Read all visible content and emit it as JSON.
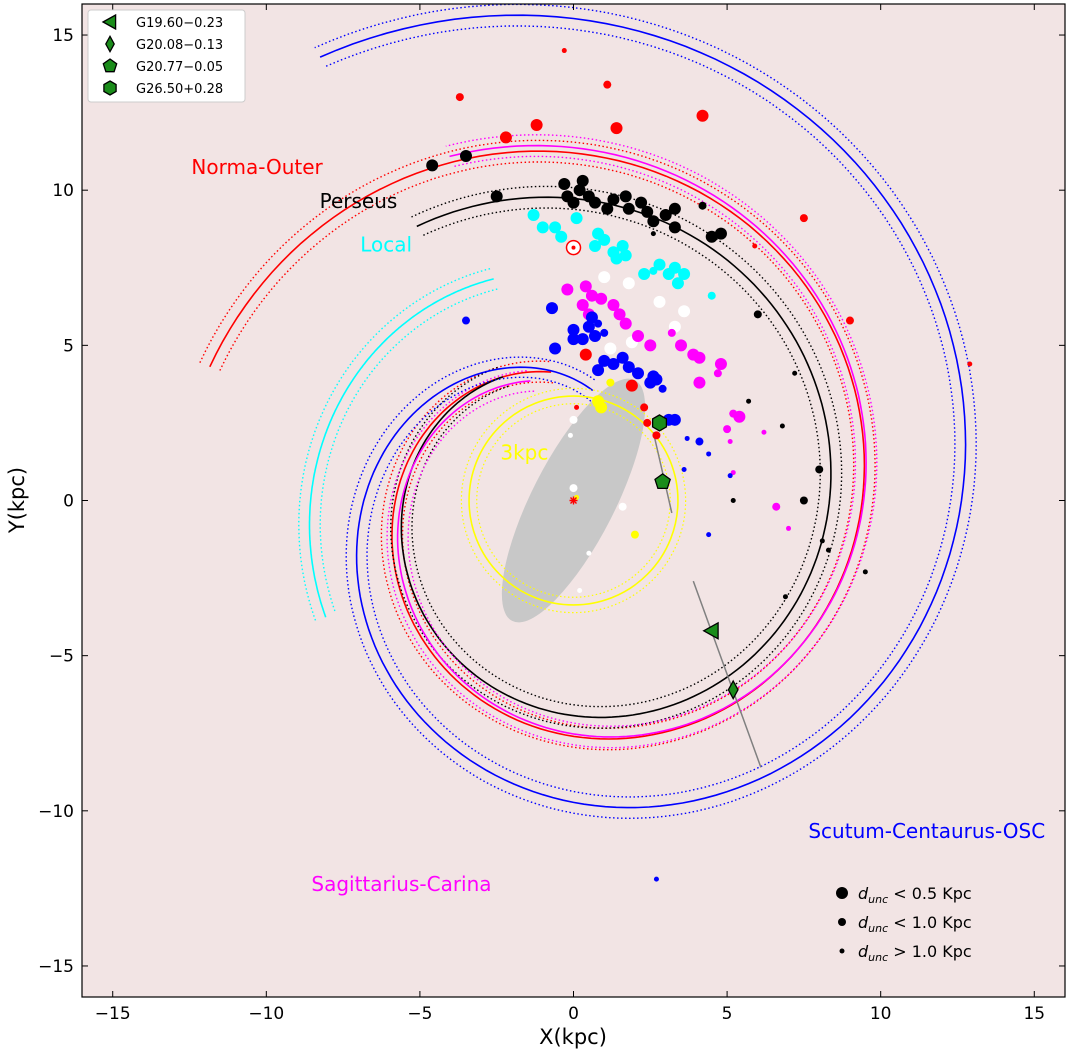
{
  "chart_data": {
    "type": "scatter",
    "xlabel": "X(kpc)",
    "ylabel": "Y(kpc)",
    "xlim": [
      -16,
      16
    ],
    "ylim": [
      -16,
      16
    ],
    "xticks": [
      -15,
      -10,
      -5,
      0,
      5,
      10,
      15
    ],
    "yticks": [
      -15,
      -10,
      -5,
      0,
      5,
      10,
      15
    ],
    "tick_labels": [
      "−15",
      "−10",
      "−5",
      "0",
      "5",
      "10",
      "15"
    ],
    "background": "#f2e4e4",
    "grid": false,
    "arms": [
      {
        "name": "Norma-Outer",
        "color": "#ff0000",
        "label_at": [
          -10.3,
          10.7
        ],
        "inner_radius": 4.2,
        "outer_radius": 12.6,
        "angle_start": 100,
        "angle_end": 520
      },
      {
        "name": "Perseus",
        "color": "#000000",
        "label_at": [
          -7.0,
          9.6
        ],
        "inner_radius": 4.6,
        "outer_radius": 10.2,
        "angle_start": 120,
        "angle_end": 480
      },
      {
        "name": "Local",
        "color": "#00ffff",
        "label_at": [
          -6.1,
          8.2
        ],
        "inner_radius": 7.6,
        "outer_radius": 8.9,
        "angle_start": 110,
        "angle_end": 205
      },
      {
        "name": "Sagittarius-Carina",
        "color": "#ff00ff",
        "label_at": [
          -5.6,
          -12.4
        ],
        "inner_radius": 4.1,
        "outer_radius": 11.8,
        "angle_start": 110,
        "angle_end": 470
      },
      {
        "name": "Scutum-Centaurus-OSC",
        "color": "#0000ff",
        "label_at": [
          11.5,
          -10.7
        ],
        "inner_radius": 3.6,
        "outer_radius": 16.5,
        "angle_start": 80,
        "angle_end": 480
      },
      {
        "name": "3kpc",
        "color": "#ffff00",
        "label_at": [
          -1.6,
          1.5
        ],
        "inner_radius": 3.4,
        "outer_radius": 3.4,
        "angle_start": 0,
        "angle_end": 360
      }
    ],
    "bar": {
      "center": [
        0,
        0
      ],
      "half_length": 4.4,
      "half_width": 1.35,
      "angle_deg": 63,
      "color": "#c8c8c8"
    },
    "sun": {
      "x": 0,
      "y": 8.15,
      "color": "#ff0000"
    },
    "galactic_center": {
      "x": 0,
      "y": 0,
      "color": "#ff0000"
    },
    "sight_lines": [
      {
        "from": [
          2.6,
          2.2
        ],
        "to": [
          3.2,
          -0.4
        ],
        "color": "#808080"
      },
      {
        "from": [
          3.9,
          -2.6
        ],
        "to": [
          6.1,
          -8.6
        ],
        "color": "#808080"
      }
    ],
    "sources": [
      {
        "name": "G19.60−0.23",
        "marker": "triangle-left",
        "x": 4.5,
        "y": -4.2,
        "color": "#1a8c1a"
      },
      {
        "name": "G20.08−0.13",
        "marker": "thin-diamond",
        "x": 5.2,
        "y": -6.1,
        "color": "#1a8c1a"
      },
      {
        "name": "G20.77−0.05",
        "marker": "pentagon",
        "x": 2.9,
        "y": 0.6,
        "color": "#1a8c1a"
      },
      {
        "name": "G26.50+0.28",
        "marker": "hexagon",
        "x": 2.8,
        "y": 2.5,
        "color": "#1a8c1a"
      }
    ],
    "maser_points": [
      {
        "x": -4.6,
        "y": 10.8,
        "s": 3,
        "c": "#000000"
      },
      {
        "x": -3.5,
        "y": 11.1,
        "s": 3,
        "c": "#000000"
      },
      {
        "x": -2.5,
        "y": 9.8,
        "s": 3,
        "c": "#000000"
      },
      {
        "x": -0.3,
        "y": 10.2,
        "s": 3,
        "c": "#000000"
      },
      {
        "x": -0.2,
        "y": 9.8,
        "s": 3,
        "c": "#000000"
      },
      {
        "x": 0.0,
        "y": 9.6,
        "s": 3,
        "c": "#000000"
      },
      {
        "x": 0.2,
        "y": 10.0,
        "s": 3,
        "c": "#000000"
      },
      {
        "x": 0.3,
        "y": 10.3,
        "s": 3,
        "c": "#000000"
      },
      {
        "x": 0.5,
        "y": 9.8,
        "s": 3,
        "c": "#000000"
      },
      {
        "x": 0.7,
        "y": 9.6,
        "s": 3,
        "c": "#000000"
      },
      {
        "x": 1.1,
        "y": 9.4,
        "s": 3,
        "c": "#000000"
      },
      {
        "x": 1.3,
        "y": 9.7,
        "s": 3,
        "c": "#000000"
      },
      {
        "x": 1.7,
        "y": 9.8,
        "s": 3,
        "c": "#000000"
      },
      {
        "x": 1.8,
        "y": 9.4,
        "s": 3,
        "c": "#000000"
      },
      {
        "x": 2.2,
        "y": 9.6,
        "s": 3,
        "c": "#000000"
      },
      {
        "x": 2.4,
        "y": 9.3,
        "s": 3,
        "c": "#000000"
      },
      {
        "x": 2.6,
        "y": 9.0,
        "s": 3,
        "c": "#000000"
      },
      {
        "x": 3.0,
        "y": 9.2,
        "s": 3,
        "c": "#000000"
      },
      {
        "x": 3.3,
        "y": 9.4,
        "s": 3,
        "c": "#000000"
      },
      {
        "x": 3.3,
        "y": 8.8,
        "s": 3,
        "c": "#000000"
      },
      {
        "x": 4.5,
        "y": 8.5,
        "s": 3,
        "c": "#000000"
      },
      {
        "x": 4.8,
        "y": 8.6,
        "s": 3,
        "c": "#000000"
      },
      {
        "x": 4.2,
        "y": 9.5,
        "s": 2,
        "c": "#000000"
      },
      {
        "x": 6.0,
        "y": 6.0,
        "s": 2,
        "c": "#000000"
      },
      {
        "x": 8.0,
        "y": 1.0,
        "s": 2,
        "c": "#000000"
      },
      {
        "x": 7.5,
        "y": 0.0,
        "s": 2,
        "c": "#000000"
      },
      {
        "x": 2.6,
        "y": 8.6,
        "s": 1,
        "c": "#000000"
      },
      {
        "x": 7.2,
        "y": 4.1,
        "s": 1,
        "c": "#000000"
      },
      {
        "x": 5.7,
        "y": 3.2,
        "s": 1,
        "c": "#000000"
      },
      {
        "x": 6.8,
        "y": 2.4,
        "s": 1,
        "c": "#000000"
      },
      {
        "x": 5.2,
        "y": 0.0,
        "s": 1,
        "c": "#000000"
      },
      {
        "x": 8.1,
        "y": -1.3,
        "s": 1,
        "c": "#000000"
      },
      {
        "x": 8.3,
        "y": -1.6,
        "s": 1,
        "c": "#000000"
      },
      {
        "x": 9.5,
        "y": -2.3,
        "s": 1,
        "c": "#000000"
      },
      {
        "x": 6.9,
        "y": -3.1,
        "s": 1,
        "c": "#000000"
      },
      {
        "x": -2.2,
        "y": 11.7,
        "s": 3,
        "c": "#ff0000"
      },
      {
        "x": -1.2,
        "y": 12.1,
        "s": 3,
        "c": "#ff0000"
      },
      {
        "x": 1.4,
        "y": 12.0,
        "s": 3,
        "c": "#ff0000"
      },
      {
        "x": 4.2,
        "y": 12.4,
        "s": 3,
        "c": "#ff0000"
      },
      {
        "x": -3.7,
        "y": 13.0,
        "s": 2,
        "c": "#ff0000"
      },
      {
        "x": 1.1,
        "y": 13.4,
        "s": 2,
        "c": "#ff0000"
      },
      {
        "x": -0.3,
        "y": 14.5,
        "s": 1,
        "c": "#ff0000"
      },
      {
        "x": 7.5,
        "y": 9.1,
        "s": 2,
        "c": "#ff0000"
      },
      {
        "x": 9.0,
        "y": 5.8,
        "s": 2,
        "c": "#ff0000"
      },
      {
        "x": 12.9,
        "y": 4.4,
        "s": 1,
        "c": "#ff0000"
      },
      {
        "x": 5.9,
        "y": 8.2,
        "s": 1,
        "c": "#ff0000"
      },
      {
        "x": 0.4,
        "y": 4.7,
        "s": 3,
        "c": "#ff0000"
      },
      {
        "x": 1.9,
        "y": 3.7,
        "s": 3,
        "c": "#ff0000"
      },
      {
        "x": 2.4,
        "y": 2.5,
        "s": 2,
        "c": "#ff0000"
      },
      {
        "x": 2.7,
        "y": 2.1,
        "s": 2,
        "c": "#ff0000"
      },
      {
        "x": 2.3,
        "y": 3.0,
        "s": 2,
        "c": "#ff0000"
      },
      {
        "x": 0.1,
        "y": 3.0,
        "s": 1,
        "c": "#ff0000"
      },
      {
        "x": -1.3,
        "y": 9.2,
        "s": 3,
        "c": "#00ffff"
      },
      {
        "x": -1.0,
        "y": 8.8,
        "s": 3,
        "c": "#00ffff"
      },
      {
        "x": -0.6,
        "y": 8.8,
        "s": 3,
        "c": "#00ffff"
      },
      {
        "x": 0.1,
        "y": 9.1,
        "s": 3,
        "c": "#00ffff"
      },
      {
        "x": -0.4,
        "y": 8.5,
        "s": 3,
        "c": "#00ffff"
      },
      {
        "x": 0.7,
        "y": 8.2,
        "s": 3,
        "c": "#00ffff"
      },
      {
        "x": 0.8,
        "y": 8.6,
        "s": 3,
        "c": "#00ffff"
      },
      {
        "x": 1.0,
        "y": 8.4,
        "s": 3,
        "c": "#00ffff"
      },
      {
        "x": 1.3,
        "y": 8.0,
        "s": 3,
        "c": "#00ffff"
      },
      {
        "x": 1.4,
        "y": 7.8,
        "s": 3,
        "c": "#00ffff"
      },
      {
        "x": 1.6,
        "y": 8.2,
        "s": 3,
        "c": "#00ffff"
      },
      {
        "x": 1.7,
        "y": 7.9,
        "s": 3,
        "c": "#00ffff"
      },
      {
        "x": 2.3,
        "y": 7.3,
        "s": 3,
        "c": "#00ffff"
      },
      {
        "x": 2.8,
        "y": 7.6,
        "s": 3,
        "c": "#00ffff"
      },
      {
        "x": 3.1,
        "y": 7.3,
        "s": 3,
        "c": "#00ffff"
      },
      {
        "x": 3.3,
        "y": 7.5,
        "s": 3,
        "c": "#00ffff"
      },
      {
        "x": 3.6,
        "y": 7.3,
        "s": 3,
        "c": "#00ffff"
      },
      {
        "x": 3.4,
        "y": 7.0,
        "s": 3,
        "c": "#00ffff"
      },
      {
        "x": 2.6,
        "y": 7.4,
        "s": 2,
        "c": "#00ffff"
      },
      {
        "x": 4.5,
        "y": 6.6,
        "s": 2,
        "c": "#00ffff"
      },
      {
        "x": 1.0,
        "y": 7.2,
        "s": 3,
        "c": "#ffffff"
      },
      {
        "x": 1.8,
        "y": 7.0,
        "s": 3,
        "c": "#ffffff"
      },
      {
        "x": 2.8,
        "y": 6.4,
        "s": 3,
        "c": "#ffffff"
      },
      {
        "x": 3.6,
        "y": 6.1,
        "s": 3,
        "c": "#ffffff"
      },
      {
        "x": 3.3,
        "y": 5.6,
        "s": 3,
        "c": "#ffffff"
      },
      {
        "x": 1.9,
        "y": 5.1,
        "s": 3,
        "c": "#ffffff"
      },
      {
        "x": 1.2,
        "y": 4.9,
        "s": 3,
        "c": "#ffffff"
      },
      {
        "x": 0.6,
        "y": 5.9,
        "s": 2,
        "c": "#ffffff"
      },
      {
        "x": 0.0,
        "y": 2.6,
        "s": 2,
        "c": "#ffffff"
      },
      {
        "x": 0.0,
        "y": 0.4,
        "s": 2,
        "c": "#ffffff"
      },
      {
        "x": 1.6,
        "y": -0.2,
        "s": 2,
        "c": "#ffffff"
      },
      {
        "x": -0.1,
        "y": 2.1,
        "s": 1,
        "c": "#ffffff"
      },
      {
        "x": 0.5,
        "y": -1.7,
        "s": 1,
        "c": "#ffffff"
      },
      {
        "x": 0.2,
        "y": -2.9,
        "s": 1,
        "c": "#ffffff"
      },
      {
        "x": 0.4,
        "y": 6.9,
        "s": 3,
        "c": "#ff00ff"
      },
      {
        "x": 0.6,
        "y": 6.6,
        "s": 3,
        "c": "#ff00ff"
      },
      {
        "x": -0.2,
        "y": 6.8,
        "s": 3,
        "c": "#ff00ff"
      },
      {
        "x": 0.3,
        "y": 6.3,
        "s": 3,
        "c": "#ff00ff"
      },
      {
        "x": 0.5,
        "y": 6.0,
        "s": 3,
        "c": "#ff00ff"
      },
      {
        "x": 0.9,
        "y": 6.5,
        "s": 3,
        "c": "#ff00ff"
      },
      {
        "x": 1.3,
        "y": 6.3,
        "s": 3,
        "c": "#ff00ff"
      },
      {
        "x": 1.5,
        "y": 6.0,
        "s": 3,
        "c": "#ff00ff"
      },
      {
        "x": 1.7,
        "y": 5.7,
        "s": 3,
        "c": "#ff00ff"
      },
      {
        "x": 2.1,
        "y": 5.3,
        "s": 3,
        "c": "#ff00ff"
      },
      {
        "x": 2.5,
        "y": 5.0,
        "s": 3,
        "c": "#ff00ff"
      },
      {
        "x": 3.5,
        "y": 5.0,
        "s": 3,
        "c": "#ff00ff"
      },
      {
        "x": 3.9,
        "y": 4.7,
        "s": 3,
        "c": "#ff00ff"
      },
      {
        "x": 4.1,
        "y": 4.6,
        "s": 3,
        "c": "#ff00ff"
      },
      {
        "x": 4.8,
        "y": 4.4,
        "s": 3,
        "c": "#ff00ff"
      },
      {
        "x": 4.1,
        "y": 3.8,
        "s": 3,
        "c": "#ff00ff"
      },
      {
        "x": 5.4,
        "y": 2.7,
        "s": 3,
        "c": "#ff00ff"
      },
      {
        "x": 3.2,
        "y": 5.4,
        "s": 2,
        "c": "#ff00ff"
      },
      {
        "x": 4.7,
        "y": 4.1,
        "s": 2,
        "c": "#ff00ff"
      },
      {
        "x": 5.2,
        "y": 2.8,
        "s": 2,
        "c": "#ff00ff"
      },
      {
        "x": 5.0,
        "y": 2.3,
        "s": 2,
        "c": "#ff00ff"
      },
      {
        "x": 6.6,
        "y": -0.2,
        "s": 2,
        "c": "#ff00ff"
      },
      {
        "x": 5.1,
        "y": 1.9,
        "s": 1,
        "c": "#ff00ff"
      },
      {
        "x": 6.2,
        "y": 2.2,
        "s": 1,
        "c": "#ff00ff"
      },
      {
        "x": 5.2,
        "y": 0.9,
        "s": 1,
        "c": "#ff00ff"
      },
      {
        "x": 7.0,
        "y": -0.9,
        "s": 1,
        "c": "#ff00ff"
      },
      {
        "x": -0.7,
        "y": 6.2,
        "s": 3,
        "c": "#0000ff"
      },
      {
        "x": -0.6,
        "y": 4.9,
        "s": 3,
        "c": "#0000ff"
      },
      {
        "x": 0.0,
        "y": 5.5,
        "s": 3,
        "c": "#0000ff"
      },
      {
        "x": 0.0,
        "y": 5.2,
        "s": 3,
        "c": "#0000ff"
      },
      {
        "x": 0.3,
        "y": 5.2,
        "s": 3,
        "c": "#0000ff"
      },
      {
        "x": 0.5,
        "y": 5.6,
        "s": 3,
        "c": "#0000ff"
      },
      {
        "x": 0.7,
        "y": 5.3,
        "s": 3,
        "c": "#0000ff"
      },
      {
        "x": 0.6,
        "y": 5.9,
        "s": 3,
        "c": "#0000ff"
      },
      {
        "x": 0.8,
        "y": 4.2,
        "s": 3,
        "c": "#0000ff"
      },
      {
        "x": 1.0,
        "y": 4.5,
        "s": 3,
        "c": "#0000ff"
      },
      {
        "x": 1.3,
        "y": 4.4,
        "s": 3,
        "c": "#0000ff"
      },
      {
        "x": 1.6,
        "y": 4.6,
        "s": 3,
        "c": "#0000ff"
      },
      {
        "x": 1.8,
        "y": 4.3,
        "s": 3,
        "c": "#0000ff"
      },
      {
        "x": 2.1,
        "y": 4.1,
        "s": 3,
        "c": "#0000ff"
      },
      {
        "x": 2.5,
        "y": 3.8,
        "s": 3,
        "c": "#0000ff"
      },
      {
        "x": 2.6,
        "y": 4.0,
        "s": 3,
        "c": "#0000ff"
      },
      {
        "x": 2.7,
        "y": 3.9,
        "s": 3,
        "c": "#0000ff"
      },
      {
        "x": 3.3,
        "y": 2.6,
        "s": 3,
        "c": "#0000ff"
      },
      {
        "x": 3.1,
        "y": 2.6,
        "s": 3,
        "c": "#0000ff"
      },
      {
        "x": 4.1,
        "y": 1.9,
        "s": 2,
        "c": "#0000ff"
      },
      {
        "x": 2.9,
        "y": 3.6,
        "s": 2,
        "c": "#0000ff"
      },
      {
        "x": -3.5,
        "y": 5.8,
        "s": 2,
        "c": "#0000ff"
      },
      {
        "x": 0.8,
        "y": 5.7,
        "s": 2,
        "c": "#0000ff"
      },
      {
        "x": 1.0,
        "y": 5.4,
        "s": 2,
        "c": "#0000ff"
      },
      {
        "x": 3.7,
        "y": 2.0,
        "s": 1,
        "c": "#0000ff"
      },
      {
        "x": 4.4,
        "y": 1.5,
        "s": 1,
        "c": "#0000ff"
      },
      {
        "x": 3.6,
        "y": 1.0,
        "s": 1,
        "c": "#0000ff"
      },
      {
        "x": 4.4,
        "y": -1.1,
        "s": 1,
        "c": "#0000ff"
      },
      {
        "x": 5.1,
        "y": 0.8,
        "s": 1,
        "c": "#0000ff"
      },
      {
        "x": 2.7,
        "y": -12.2,
        "s": 1,
        "c": "#0000ff"
      },
      {
        "x": 0.8,
        "y": 3.2,
        "s": 3,
        "c": "#ffff00"
      },
      {
        "x": 0.9,
        "y": 3.0,
        "s": 3,
        "c": "#ffff00"
      },
      {
        "x": 1.2,
        "y": 3.8,
        "s": 2,
        "c": "#ffff00"
      },
      {
        "x": 2.0,
        "y": -1.1,
        "s": 2,
        "c": "#ffff00"
      },
      {
        "x": 0.1,
        "y": 0.1,
        "s": 1,
        "c": "#ffff00"
      }
    ],
    "size_legend": [
      {
        "label": "d",
        "sub": "unc",
        "suffix": " < 0.5 Kpc",
        "s": 3
      },
      {
        "label": "d",
        "sub": "unc",
        "suffix": " < 1.0 Kpc",
        "s": 2
      },
      {
        "label": "d",
        "sub": "unc",
        "suffix": " > 1.0 Kpc",
        "s": 1
      }
    ],
    "legend_placement": "top-left"
  }
}
